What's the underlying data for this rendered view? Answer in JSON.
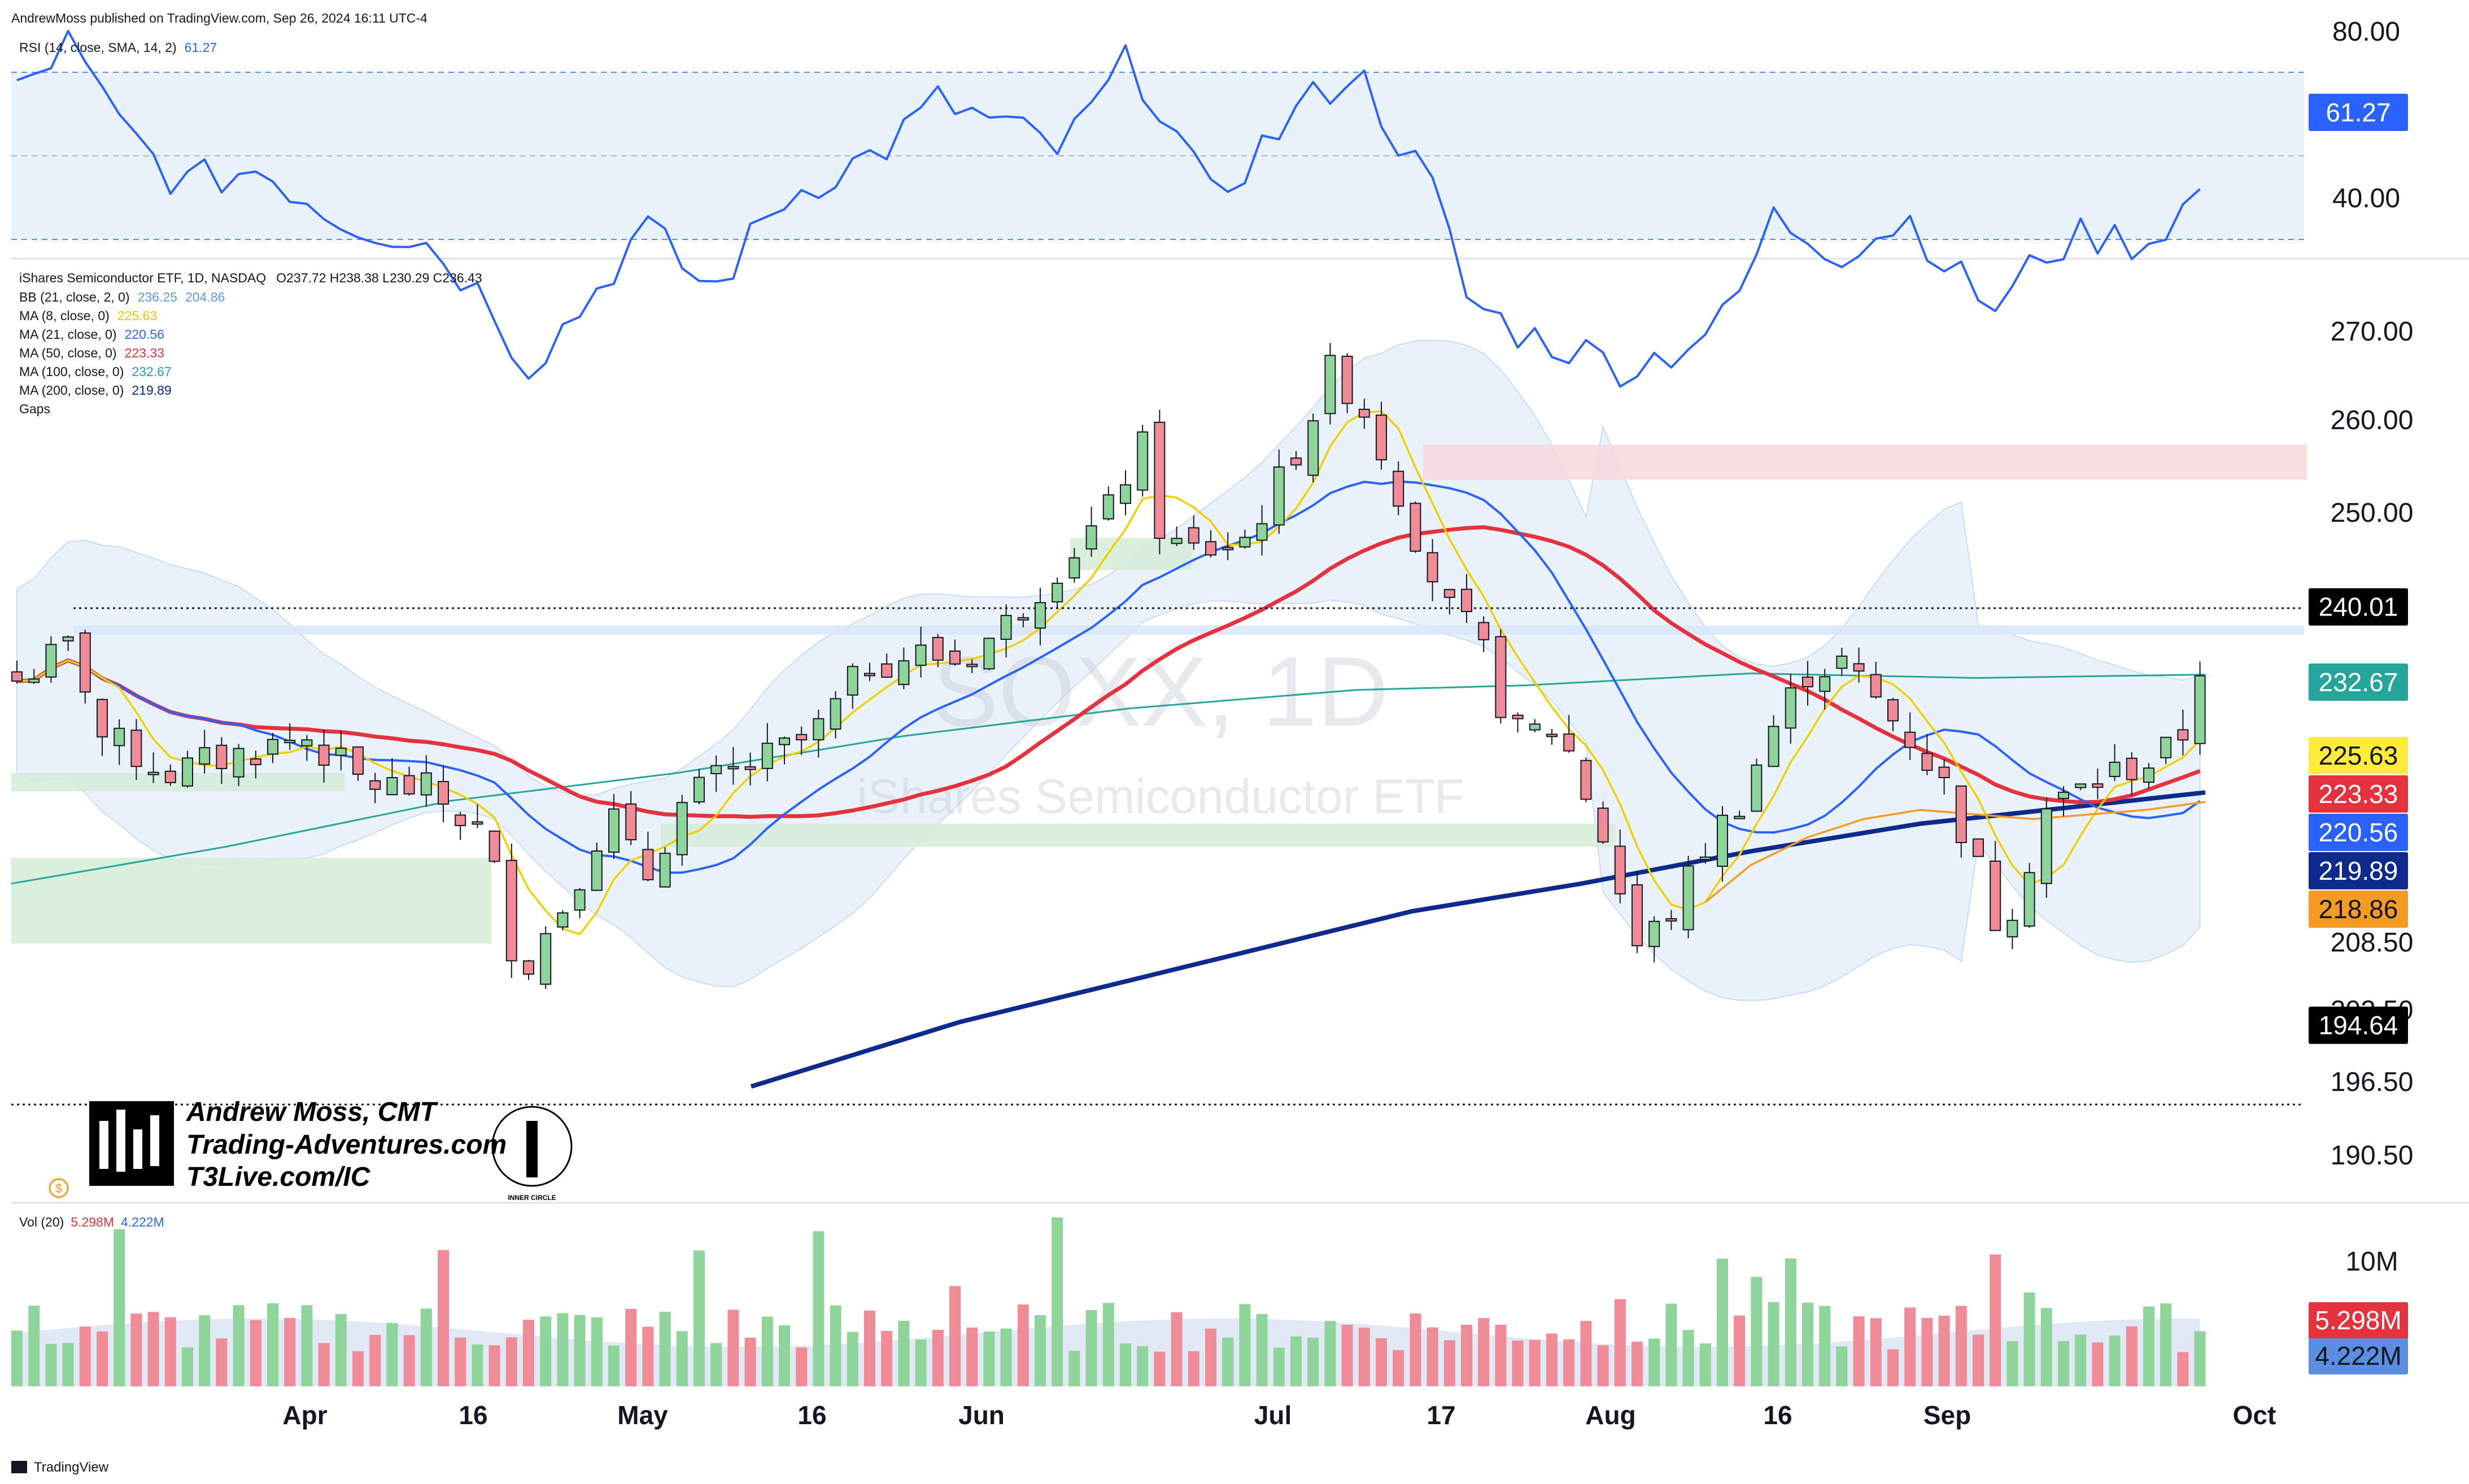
{
  "header": {
    "published": "AndrewMoss published on TradingView.com, Sep 26, 2024 16:11 UTC-4",
    "rsi_label": "RSI (14, close, SMA, 14, 2)",
    "rsi_value": "61.27",
    "instrument": "iShares Semiconductor ETF, 1D, NASDAQ",
    "ohlc": "O237.72  H238.38  L230.29  C236.43",
    "indicators": [
      {
        "label": "BB (21, close, 2, 0)",
        "values": [
          "236.25",
          "204.86"
        ],
        "colors": [
          "#5b9bd5",
          "#5b9bd5"
        ]
      },
      {
        "label": "MA (8, close, 0)",
        "values": [
          "225.63"
        ],
        "colors": [
          "#e6c800"
        ]
      },
      {
        "label": "MA (21, close, 0)",
        "values": [
          "220.56"
        ],
        "colors": [
          "#2962ff"
        ]
      },
      {
        "label": "MA (50, close, 0)",
        "values": [
          "223.33"
        ],
        "colors": [
          "#e5323f"
        ]
      },
      {
        "label": "MA (100, close, 0)",
        "values": [
          "232.67"
        ],
        "colors": [
          "#26a69a"
        ]
      },
      {
        "label": "MA (200, close, 0)",
        "values": [
          "219.89"
        ],
        "colors": [
          "#0d2a8c"
        ]
      },
      {
        "label": "Gaps",
        "values": [],
        "colors": []
      }
    ],
    "vol_label": "Vol (20)",
    "vol_values": [
      "5.298M",
      "4.222M"
    ]
  },
  "watermark": {
    "symbol": "SOXX, 1D",
    "name": "iShares Semiconductor ETF"
  },
  "branding": {
    "line1": "Andrew Moss, CMT",
    "line2": "Trading-Adventures.com",
    "line3": "T3Live.com/IC",
    "badge": "INNER CIRCLE"
  },
  "footer": {
    "logo": "TradingView"
  },
  "colors": {
    "up": "#8fd49a",
    "down": "#f08c98",
    "rsi": "#2962ff",
    "ma8": "#f0d000",
    "ma21": "#2962ff",
    "ma50": "#e5323f",
    "ma100": "#26a69a",
    "ma200": "#0d2a8c",
    "ma_orange": "#f59a23",
    "bb_fill": "#e9f1fb"
  },
  "chart_data": {
    "type": "candlestick",
    "symbol": "SOXX",
    "interval": "1D",
    "y_axis_ticks": [
      "270.00",
      "260.00",
      "250.00",
      "240.01",
      "232.67",
      "225.63",
      "223.33",
      "220.56",
      "219.89",
      "218.86",
      "208.50",
      "202.50",
      "196.50",
      "194.64",
      "190.50"
    ],
    "rsi_axis_ticks": [
      "80.00",
      "61.27",
      "40.00"
    ],
    "vol_axis_ticks": [
      "10M",
      "5.298M",
      "4.222M"
    ],
    "x_ticks": [
      "Apr",
      "16",
      "May",
      "16",
      "Jun",
      "Jul",
      "17",
      "Aug",
      "16",
      "Sep",
      "Oct"
    ],
    "price_tags": [
      {
        "value": "240.01",
        "bg": "#000000",
        "fg": "#ffffff"
      },
      {
        "value": "232.67",
        "bg": "#26a69a",
        "fg": "#ffffff"
      },
      {
        "value": "225.63",
        "bg": "#ffeb3b",
        "fg": "#131722"
      },
      {
        "value": "223.33",
        "bg": "#e5323f",
        "fg": "#ffffff"
      },
      {
        "value": "220.56",
        "bg": "#2962ff",
        "fg": "#ffffff"
      },
      {
        "value": "219.89",
        "bg": "#0d2a8c",
        "fg": "#ffffff"
      },
      {
        "value": "218.86",
        "bg": "#f59a23",
        "fg": "#131722"
      },
      {
        "value": "194.64",
        "bg": "#000000",
        "fg": "#ffffff"
      }
    ],
    "levels": [
      240.01,
      194.64
    ],
    "gap_zones": [
      {
        "from": 253.8,
        "to": 257.6,
        "color": "#f8d7dc"
      },
      {
        "from": 237.0,
        "to": 238.0,
        "color": "#d8e6fb"
      },
      {
        "from": 244.0,
        "to": 247.5,
        "color": "#d5ecd7"
      },
      {
        "from": 214.0,
        "to": 216.5,
        "color": "#d5ecd7"
      },
      {
        "from": 203.5,
        "to": 212.8,
        "color": "#d5ecd7"
      },
      {
        "from": 220.0,
        "to": 222.0,
        "color": "#d5ecd7"
      }
    ],
    "last": {
      "open": 237.72,
      "high": 238.38,
      "low": 230.29,
      "close": 236.43
    },
    "rsi_last": 61.27,
    "vol_last": "5.298M",
    "vol_sma": "4.222M"
  }
}
